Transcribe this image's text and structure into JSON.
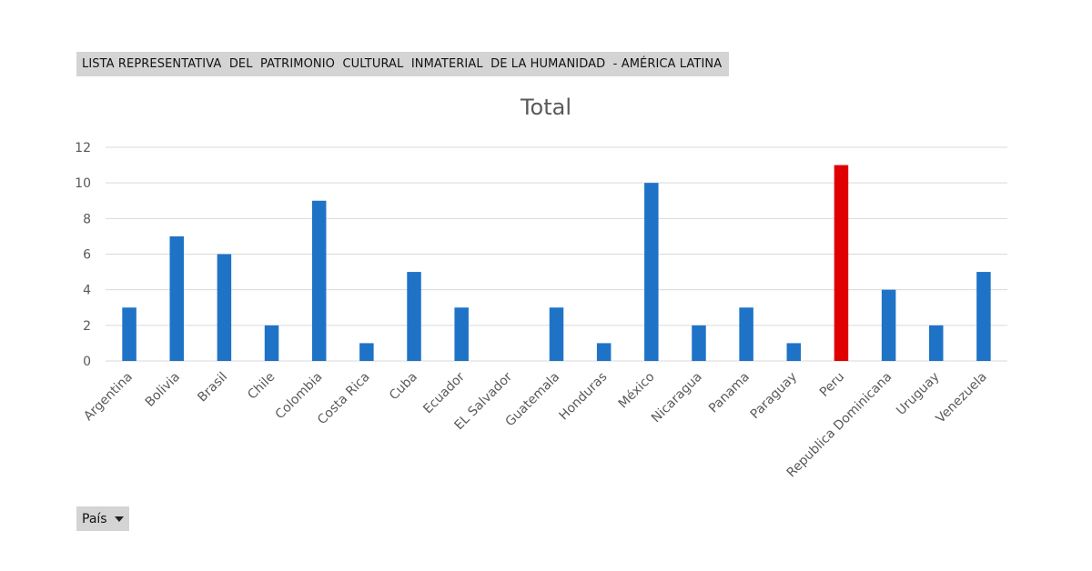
{
  "header": {
    "title": "LISTA REPRESENTATIVA  DEL  PATRIMONIO  CULTURAL  INMATERIAL  DE LA HUMANIDAD  - AMÉRICA LATINA"
  },
  "filter": {
    "label": "País",
    "icon": "dropdown-caret-icon"
  },
  "chart_data": {
    "type": "bar",
    "title": "Total",
    "xlabel": "",
    "ylabel": "",
    "ylim": [
      0,
      12
    ],
    "yticks": [
      0,
      2,
      4,
      6,
      8,
      10,
      12
    ],
    "grid": true,
    "categories": [
      "Argentina",
      "Bolivia",
      "Brasil",
      "Chile",
      "Colombia",
      "Costa Rica",
      "Cuba",
      "Ecuador",
      "EL Salvador",
      "Guatemala",
      "Honduras",
      "México",
      "Nicaragua",
      "Panama",
      "Paraguay",
      "Peru",
      "Republica Dominicana",
      "Uruguay",
      "Venezuela"
    ],
    "values": [
      3,
      7,
      6,
      2,
      9,
      1,
      5,
      3,
      0,
      3,
      1,
      10,
      2,
      3,
      1,
      11,
      4,
      2,
      5
    ],
    "bar_color": "#1f73c7",
    "highlight": {
      "category": "Peru",
      "color": "#e00000"
    },
    "gridline_color": "#d9d9d9"
  }
}
